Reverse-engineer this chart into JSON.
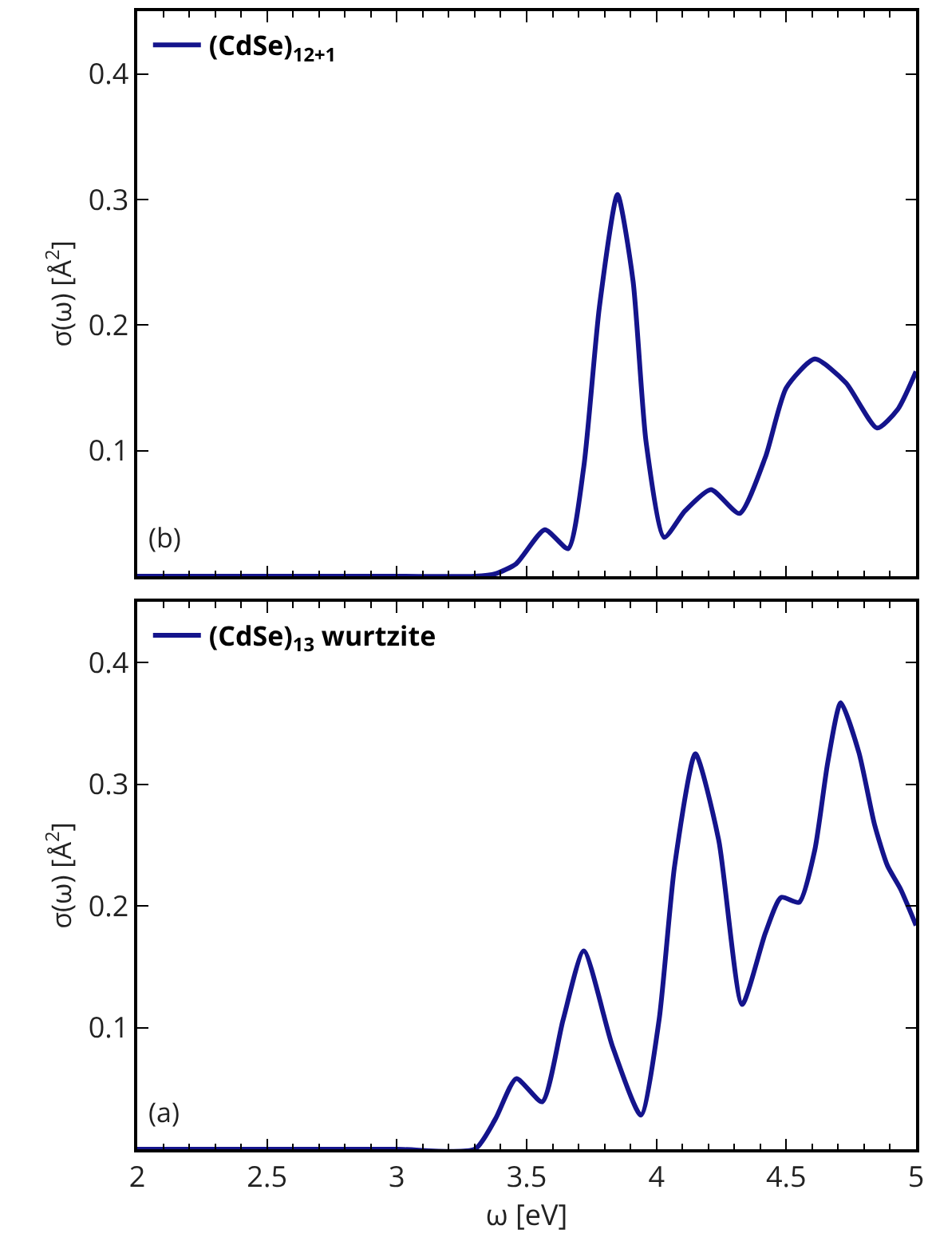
{
  "chart_data": [
    {
      "type": "line",
      "ylabel": "σ(ω) [Å$^{2}$]",
      "annotations": [
        "(b)"
      ],
      "legend": "top left",
      "grid": false,
      "tick_labels": "y",
      "line_style": "solid",
      "marker": "none",
      "xlim": [
        2,
        5
      ],
      "xticks": [
        2,
        2.5,
        3,
        3.5,
        4,
        4.5,
        5
      ],
      "ylim": [
        0,
        0.45
      ],
      "yticks": [
        0.1,
        0.2,
        0.3,
        0.4
      ],
      "series": [
        {
          "name": "(CdSe)$_{12+1}$",
          "color": "#14148c",
          "x": [
            2,
            2.5,
            3,
            3.3,
            3.38,
            3.46,
            3.57,
            3.66,
            3.72,
            3.78,
            3.85,
            3.91,
            3.96,
            4.03,
            4.11,
            4.21,
            4.32,
            4.42,
            4.5,
            4.61,
            4.73,
            4.85,
            4.93,
            5
          ],
          "values": [
            0,
            0,
            0,
            0,
            0.002,
            0.01,
            0.037,
            0.022,
            0.087,
            0.214,
            0.304,
            0.235,
            0.107,
            0.031,
            0.052,
            0.069,
            0.05,
            0.095,
            0.15,
            0.173,
            0.154,
            0.118,
            0.133,
            0.163
          ]
        }
      ]
    },
    {
      "type": "line",
      "xlabel": "ω [eV]",
      "ylabel": "σ(ω) [Å$^{2}$]",
      "annotations": [
        "(a)"
      ],
      "legend": "top left",
      "grid": false,
      "line_style": "solid",
      "marker": "none",
      "xlim": [
        2,
        5
      ],
      "xticks": [
        2,
        2.5,
        3,
        3.5,
        4,
        4.5,
        5
      ],
      "ylim": [
        0,
        0.45
      ],
      "yticks": [
        0.1,
        0.2,
        0.3,
        0.4
      ],
      "series": [
        {
          "name": "(CdSe)$_{13}$ wurtzite",
          "color": "#14148c",
          "x": [
            2,
            2.5,
            3,
            3.3,
            3.38,
            3.46,
            3.56,
            3.64,
            3.72,
            3.83,
            3.94,
            4.01,
            4.07,
            4.15,
            4.24,
            4.33,
            4.42,
            4.48,
            4.55,
            4.61,
            4.66,
            4.71,
            4.78,
            4.84,
            4.89,
            4.94,
            5
          ],
          "values": [
            0,
            0,
            0,
            0,
            0.025,
            0.058,
            0.039,
            0.106,
            0.163,
            0.085,
            0.028,
            0.106,
            0.233,
            0.325,
            0.254,
            0.119,
            0.178,
            0.207,
            0.203,
            0.246,
            0.318,
            0.367,
            0.326,
            0.267,
            0.233,
            0.214,
            0.184
          ]
        }
      ]
    }
  ]
}
